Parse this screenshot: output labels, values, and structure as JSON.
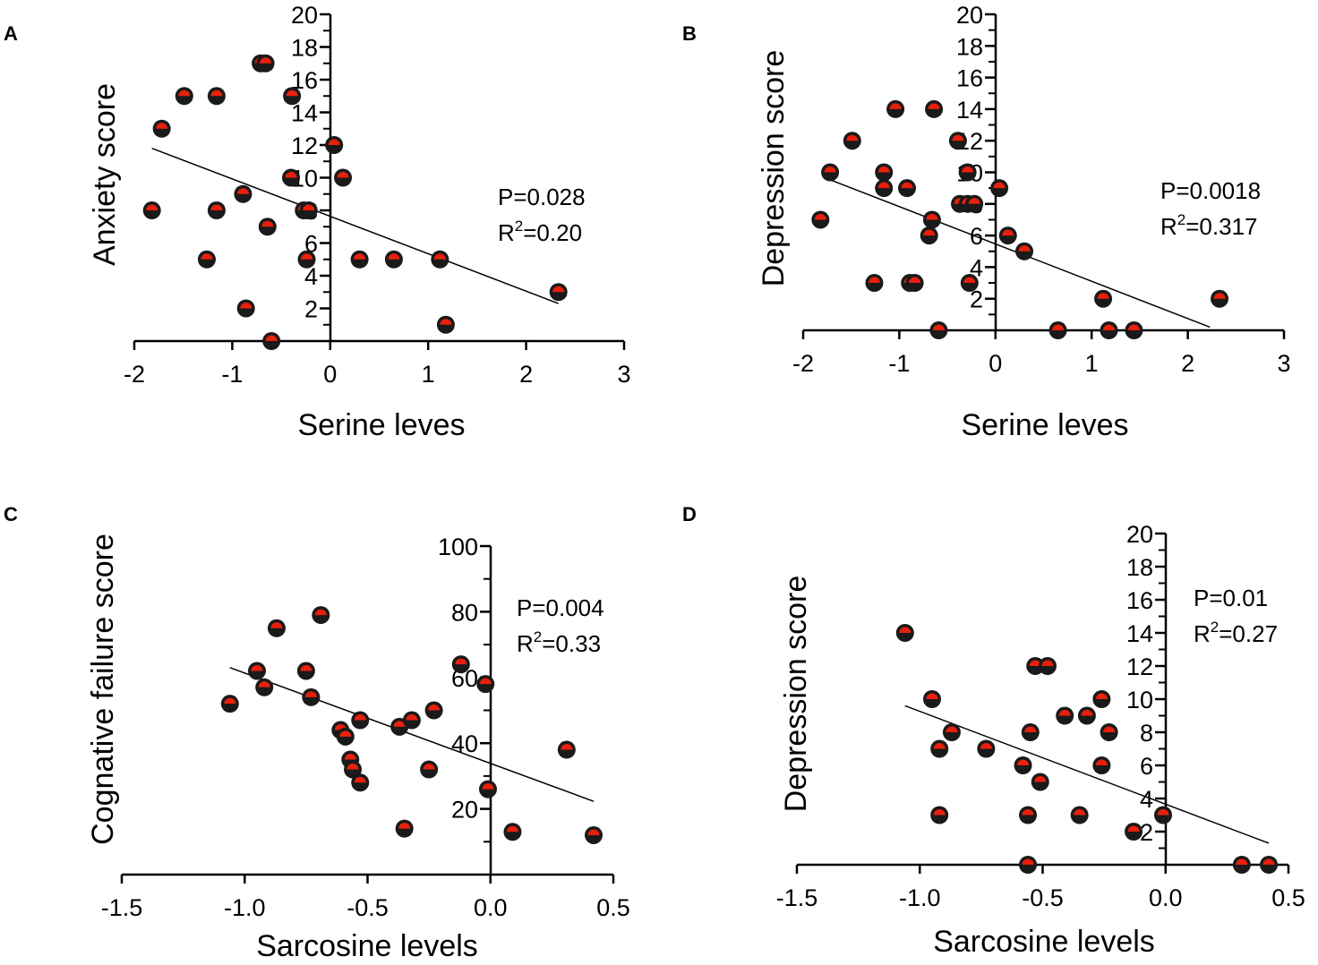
{
  "chart_data": [
    {
      "panel": "A",
      "type": "scatter",
      "title": "",
      "xlabel": "Serine leves",
      "ylabel": "Anxiety score",
      "xlim": [
        -2,
        3
      ],
      "ylim": [
        0,
        20
      ],
      "xticks": [
        "-2",
        "-1",
        "0",
        "1",
        "2",
        "3"
      ],
      "yticks": [
        "2",
        "4",
        "6",
        "8",
        "10",
        "12",
        "14",
        "16",
        "18",
        "20"
      ],
      "points": [
        {
          "x": -1.82,
          "y": 8
        },
        {
          "x": -1.72,
          "y": 13
        },
        {
          "x": -1.49,
          "y": 15
        },
        {
          "x": -1.16,
          "y": 15
        },
        {
          "x": -1.16,
          "y": 8
        },
        {
          "x": -1.26,
          "y": 5
        },
        {
          "x": -0.89,
          "y": 9
        },
        {
          "x": -0.86,
          "y": 2
        },
        {
          "x": -0.71,
          "y": 17
        },
        {
          "x": -0.66,
          "y": 17
        },
        {
          "x": -0.64,
          "y": 7
        },
        {
          "x": -0.6,
          "y": 0
        },
        {
          "x": -0.39,
          "y": 15
        },
        {
          "x": -0.4,
          "y": 10
        },
        {
          "x": -0.27,
          "y": 8
        },
        {
          "x": -0.22,
          "y": 8
        },
        {
          "x": -0.24,
          "y": 5
        },
        {
          "x": 0.04,
          "y": 12
        },
        {
          "x": 0.13,
          "y": 10
        },
        {
          "x": 0.3,
          "y": 5
        },
        {
          "x": 0.65,
          "y": 5
        },
        {
          "x": 1.12,
          "y": 5
        },
        {
          "x": 1.18,
          "y": 1
        },
        {
          "x": 2.33,
          "y": 3
        }
      ],
      "fit": {
        "x": [
          -1.82,
          2.33
        ],
        "y": [
          11.8,
          2.3
        ]
      },
      "p_text": "P=0.028",
      "r2_prefix": "R",
      "r2_sup": "2",
      "r2_value": "=0.20"
    },
    {
      "panel": "B",
      "type": "scatter",
      "title": "",
      "xlabel": "Serine leves",
      "ylabel": "Depression score",
      "xlim": [
        -2,
        3
      ],
      "ylim": [
        0,
        20
      ],
      "xticks": [
        "-2",
        "-1",
        "0",
        "1",
        "2",
        "3"
      ],
      "yticks": [
        "2",
        "4",
        "6",
        "8",
        "10",
        "12",
        "14",
        "16",
        "18",
        "20"
      ],
      "points": [
        {
          "x": -1.82,
          "y": 7
        },
        {
          "x": -1.72,
          "y": 10
        },
        {
          "x": -1.49,
          "y": 12
        },
        {
          "x": -1.26,
          "y": 3
        },
        {
          "x": -1.16,
          "y": 10
        },
        {
          "x": -1.16,
          "y": 9
        },
        {
          "x": -1.04,
          "y": 14
        },
        {
          "x": -0.92,
          "y": 9
        },
        {
          "x": -0.89,
          "y": 3
        },
        {
          "x": -0.84,
          "y": 3
        },
        {
          "x": -0.64,
          "y": 14
        },
        {
          "x": -0.66,
          "y": 7
        },
        {
          "x": -0.69,
          "y": 6
        },
        {
          "x": -0.59,
          "y": 0
        },
        {
          "x": -0.39,
          "y": 12
        },
        {
          "x": -0.37,
          "y": 8
        },
        {
          "x": -0.29,
          "y": 10
        },
        {
          "x": -0.29,
          "y": 8
        },
        {
          "x": -0.22,
          "y": 8
        },
        {
          "x": -0.27,
          "y": 3
        },
        {
          "x": 0.04,
          "y": 9
        },
        {
          "x": 0.13,
          "y": 6
        },
        {
          "x": 0.3,
          "y": 5
        },
        {
          "x": 0.65,
          "y": 0
        },
        {
          "x": 1.12,
          "y": 2
        },
        {
          "x": 1.18,
          "y": 0
        },
        {
          "x": 1.44,
          "y": 0
        },
        {
          "x": 2.33,
          "y": 2
        }
      ],
      "fit": {
        "x": [
          -1.75,
          2.23
        ],
        "y": [
          9.6,
          0.2
        ]
      },
      "p_text": "P=0.0018",
      "r2_prefix": "R",
      "r2_sup": "2",
      "r2_value": "=0.317"
    },
    {
      "panel": "C",
      "type": "scatter",
      "title": "",
      "xlabel": "Sarcosine levels",
      "ylabel": "Cognative failure score",
      "xlim": [
        -1.5,
        0.5
      ],
      "ylim": [
        0,
        100
      ],
      "xticks": [
        "-1.5",
        "-1.0",
        "-0.5",
        "0.0",
        "0.5"
      ],
      "yticks": [
        "20",
        "40",
        "60",
        "80",
        "100"
      ],
      "points": [
        {
          "x": -1.06,
          "y": 52
        },
        {
          "x": -0.95,
          "y": 62
        },
        {
          "x": -0.92,
          "y": 57
        },
        {
          "x": -0.87,
          "y": 75
        },
        {
          "x": -0.75,
          "y": 62
        },
        {
          "x": -0.73,
          "y": 54
        },
        {
          "x": -0.69,
          "y": 79
        },
        {
          "x": -0.61,
          "y": 44
        },
        {
          "x": -0.59,
          "y": 42
        },
        {
          "x": -0.57,
          "y": 35
        },
        {
          "x": -0.56,
          "y": 32
        },
        {
          "x": -0.53,
          "y": 47
        },
        {
          "x": -0.53,
          "y": 28
        },
        {
          "x": -0.37,
          "y": 45
        },
        {
          "x": -0.35,
          "y": 14
        },
        {
          "x": -0.32,
          "y": 47
        },
        {
          "x": -0.25,
          "y": 32
        },
        {
          "x": -0.23,
          "y": 50
        },
        {
          "x": -0.12,
          "y": 64
        },
        {
          "x": -0.02,
          "y": 58
        },
        {
          "x": -0.01,
          "y": 26
        },
        {
          "x": 0.09,
          "y": 13
        },
        {
          "x": 0.31,
          "y": 38
        },
        {
          "x": 0.42,
          "y": 12
        }
      ],
      "fit": {
        "x": [
          -1.06,
          0.42
        ],
        "y": [
          63.0,
          22.3
        ]
      },
      "p_text": "P=0.004",
      "r2_prefix": "R",
      "r2_sup": "2",
      "r2_value": "=0.33"
    },
    {
      "panel": "D",
      "type": "scatter",
      "title": "",
      "xlabel": "Sarcosine levels",
      "ylabel": "Depression score",
      "xlim": [
        -1.5,
        0.5
      ],
      "ylim": [
        0,
        20
      ],
      "xticks": [
        "-1.5",
        "-1.0",
        "-0.5",
        "0.0",
        "0.5"
      ],
      "yticks": [
        "2",
        "4",
        "6",
        "8",
        "10",
        "12",
        "14",
        "16",
        "18",
        "20"
      ],
      "points": [
        {
          "x": -1.06,
          "y": 14
        },
        {
          "x": -0.95,
          "y": 10
        },
        {
          "x": -0.92,
          "y": 7
        },
        {
          "x": -0.92,
          "y": 3
        },
        {
          "x": -0.87,
          "y": 8
        },
        {
          "x": -0.73,
          "y": 7
        },
        {
          "x": -0.58,
          "y": 6
        },
        {
          "x": -0.56,
          "y": 0
        },
        {
          "x": -0.56,
          "y": 3
        },
        {
          "x": -0.55,
          "y": 8
        },
        {
          "x": -0.53,
          "y": 12
        },
        {
          "x": -0.48,
          "y": 12
        },
        {
          "x": -0.51,
          "y": 5
        },
        {
          "x": -0.41,
          "y": 9
        },
        {
          "x": -0.35,
          "y": 3
        },
        {
          "x": -0.32,
          "y": 9
        },
        {
          "x": -0.26,
          "y": 10
        },
        {
          "x": -0.26,
          "y": 6
        },
        {
          "x": -0.23,
          "y": 8
        },
        {
          "x": -0.13,
          "y": 2
        },
        {
          "x": -0.01,
          "y": 3
        },
        {
          "x": 0.31,
          "y": 0
        },
        {
          "x": 0.42,
          "y": 0
        }
      ],
      "fit": {
        "x": [
          -1.06,
          0.42
        ],
        "y": [
          9.6,
          1.3
        ]
      },
      "p_text": "P=0.01",
      "r2_prefix": "R",
      "r2_sup": "2",
      "r2_value": "=0.27"
    }
  ]
}
